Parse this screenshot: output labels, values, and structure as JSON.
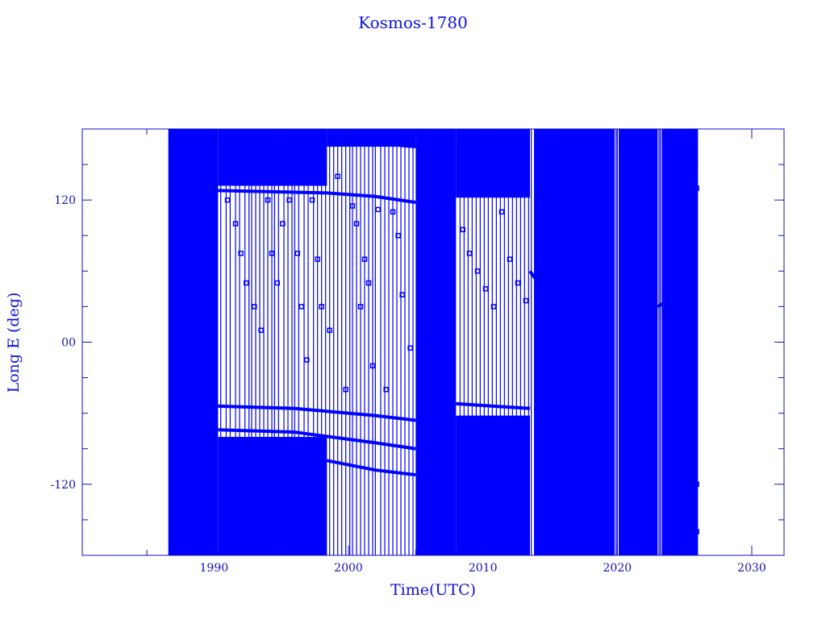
{
  "chart_data": {
    "type": "line",
    "title": "Kosmos-1780",
    "xlabel": "Time(UTC)",
    "ylabel": "Long E (deg)",
    "xlim": [
      1980.2,
      2032.4
    ],
    "ylim": [
      -180,
      180
    ],
    "x_ticks": [
      1990,
      2000,
      2010,
      2020,
      2030
    ],
    "x_tick_labels": [
      "1990",
      "2000",
      "2010",
      "2020",
      "2030"
    ],
    "y_ticks": [
      -120,
      0,
      120
    ],
    "y_tick_labels": [
      "-120",
      "00",
      "120"
    ],
    "grid": false,
    "color": "#0000ff",
    "marker": "square",
    "dense_regions": [
      {
        "x": [
          1986.6,
          1990.3
        ],
        "y": [
          -180,
          180
        ]
      },
      {
        "x": [
          1990.3,
          1998.4
        ],
        "y": [
          -180,
          -80
        ]
      },
      {
        "x": [
          1990.3,
          1998.4
        ],
        "y": [
          132,
          180
        ]
      },
      {
        "x": [
          1998.4,
          2005.0
        ],
        "y": [
          165,
          180
        ]
      },
      {
        "x": [
          2005.0,
          2008.0
        ],
        "y": [
          -180,
          180
        ]
      },
      {
        "x": [
          2008.0,
          2013.5
        ],
        "y": [
          122,
          180
        ]
      },
      {
        "x": [
          2008.0,
          2013.5
        ],
        "y": [
          -180,
          -62
        ]
      },
      {
        "x": [
          2013.8,
          2019.8
        ],
        "y": [
          -180,
          180
        ]
      },
      {
        "x": [
          2020.1,
          2023.0
        ],
        "y": [
          -180,
          180
        ]
      },
      {
        "x": [
          2023.3,
          2026.0
        ],
        "y": [
          -180,
          180
        ]
      }
    ],
    "tracks": [
      [
        [
          1990.3,
          128
        ],
        [
          1998.4,
          126
        ],
        [
          2002.0,
          123
        ],
        [
          2005.0,
          118
        ]
      ],
      [
        [
          1998.4,
          172
        ],
        [
          2005.0,
          165
        ]
      ],
      [
        [
          1990.3,
          -54
        ],
        [
          1996.0,
          -56
        ],
        [
          2002.0,
          -62
        ],
        [
          2005.0,
          -66
        ]
      ],
      [
        [
          1990.3,
          -74
        ],
        [
          1996.0,
          -76
        ],
        [
          2002.0,
          -85
        ],
        [
          2005.0,
          -90
        ]
      ],
      [
        [
          1998.4,
          -100
        ],
        [
          2002.0,
          -108
        ],
        [
          2005.0,
          -112
        ]
      ],
      [
        [
          2008.0,
          -52
        ],
        [
          2013.5,
          -56
        ]
      ],
      [
        [
          2013.5,
          60
        ],
        [
          2016.0,
          20
        ]
      ],
      [
        [
          2023.0,
          30
        ],
        [
          2024.5,
          40
        ]
      ]
    ],
    "wrap_lines": [
      1990.5,
      1990.9,
      1991.2,
      1991.6,
      1991.9,
      1992.3,
      1992.6,
      1992.8,
      1993.1,
      1993.4,
      1993.7,
      1994.0,
      1994.3,
      1994.5,
      1994.8,
      1995.2,
      1995.5,
      1995.8,
      1996.0,
      1996.3,
      1996.7,
      1997.0,
      1997.4,
      1997.7,
      1998.0,
      1998.3,
      1998.6,
      1998.9,
      1999.2,
      1999.5,
      1999.8,
      2000.1,
      2000.3,
      2000.6,
      2000.9,
      2001.2,
      2001.5,
      2001.8,
      2002.0,
      2002.4,
      2002.7,
      2003.0,
      2003.3,
      2003.6,
      2003.9,
      2004.2,
      2004.5,
      2004.8,
      2008.3,
      2008.6,
      2008.9,
      2009.2,
      2009.5,
      2009.8,
      2010.1,
      2010.4,
      2010.7,
      2011.0,
      2011.3,
      2011.6,
      2011.9,
      2012.2,
      2012.5,
      2012.8,
      2013.1,
      2013.4,
      2013.6,
      2019.9,
      2020.0,
      2023.1,
      2023.2
    ],
    "points": [
      [
        1991.0,
        120
      ],
      [
        1991.6,
        100
      ],
      [
        1992.0,
        75
      ],
      [
        1992.4,
        50
      ],
      [
        1993.0,
        30
      ],
      [
        1993.5,
        10
      ],
      [
        1994.0,
        120
      ],
      [
        1994.3,
        75
      ],
      [
        1994.7,
        50
      ],
      [
        1995.1,
        100
      ],
      [
        1995.6,
        120
      ],
      [
        1996.2,
        75
      ],
      [
        1996.5,
        30
      ],
      [
        1996.9,
        -15
      ],
      [
        1997.3,
        120
      ],
      [
        1997.7,
        70
      ],
      [
        1998.0,
        30
      ],
      [
        1998.6,
        10
      ],
      [
        1999.2,
        140
      ],
      [
        1999.8,
        -40
      ],
      [
        2000.3,
        115
      ],
      [
        2000.6,
        100
      ],
      [
        2000.9,
        30
      ],
      [
        2001.2,
        70
      ],
      [
        2001.5,
        50
      ],
      [
        2001.8,
        -20
      ],
      [
        2002.2,
        112
      ],
      [
        2002.8,
        -40
      ],
      [
        2003.3,
        110
      ],
      [
        2003.7,
        90
      ],
      [
        2004.0,
        40
      ],
      [
        2004.6,
        -5
      ],
      [
        2005.0,
        170
      ],
      [
        2007.5,
        115
      ],
      [
        2008.5,
        95
      ],
      [
        2009.0,
        75
      ],
      [
        2009.6,
        60
      ],
      [
        2010.2,
        45
      ],
      [
        2010.8,
        30
      ],
      [
        2011.4,
        110
      ],
      [
        2012.0,
        70
      ],
      [
        2012.6,
        50
      ],
      [
        2013.2,
        35
      ],
      [
        2024.0,
        -30
      ],
      [
        2025.5,
        -60
      ],
      [
        2025.8,
        150
      ],
      [
        2025.9,
        -120
      ],
      [
        2025.9,
        130
      ],
      [
        2025.9,
        -160
      ]
    ]
  }
}
